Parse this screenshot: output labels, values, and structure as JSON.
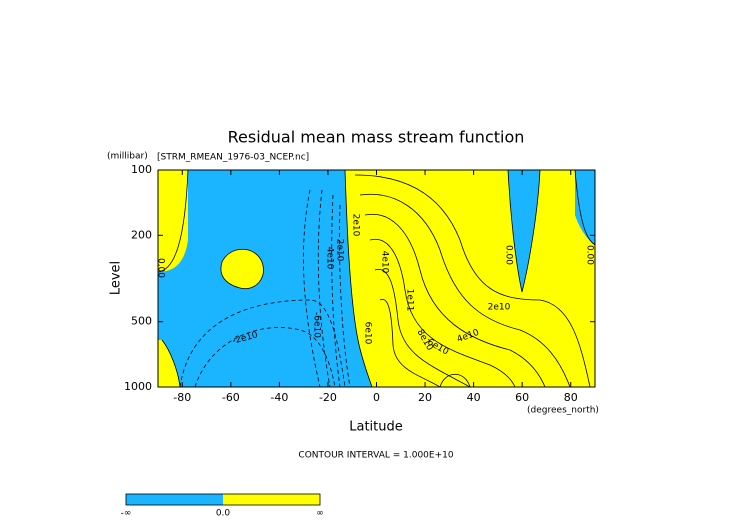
{
  "chart_data": {
    "type": "contour",
    "title": "Residual mean mass stream function",
    "subtitle": "[STRM_RMEAN_1976-03_NCEP.nc]",
    "x_label": "Latitude",
    "x_unit": "(degrees_north)",
    "y_label": "Level",
    "y_unit": "(millibar)",
    "xlim": [
      -90,
      90
    ],
    "xticks": [
      -80,
      -60,
      -40,
      -20,
      0,
      20,
      40,
      60,
      80
    ],
    "ylim": [
      1000,
      100
    ],
    "yticks": [
      100,
      200,
      500,
      1000
    ],
    "y_log": true,
    "contour_interval": "CONTOUR INTERVAL = 1.000E+10",
    "contour_labels": [
      "0.00",
      "-2e10",
      "-6e10",
      "4e10",
      "2e10",
      "2e10",
      "4e10",
      "1e11",
      "6e10",
      "8e10",
      "6e10",
      "4e10",
      "2e10",
      "0.00",
      "0.00"
    ],
    "colorbar": {
      "labels": [
        "-∞",
        "0.0",
        "∞"
      ],
      "colors": [
        "#1ab4ff",
        "#ffff00"
      ]
    }
  }
}
